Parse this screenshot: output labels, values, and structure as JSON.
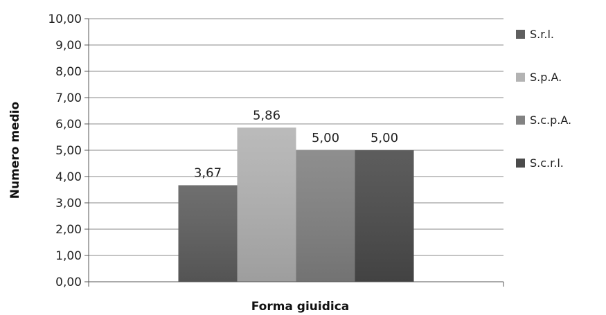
{
  "chart_data": {
    "type": "bar",
    "categories": [
      ""
    ],
    "series": [
      {
        "name": "S.r.l.",
        "values": [
          3.67
        ],
        "label": "3,67",
        "color": "#5f5f5f"
      },
      {
        "name": "S.p.A.",
        "values": [
          5.86
        ],
        "label": "5,86",
        "color": "#b3b3b3"
      },
      {
        "name": "S.c.p.A.",
        "values": [
          5.0
        ],
        "label": "5,00",
        "color": "#828282"
      },
      {
        "name": "S.c.r.l.",
        "values": [
          5.0
        ],
        "label": "5,00",
        "color": "#4b4b4b"
      }
    ],
    "xlabel": "Forma giuidica",
    "ylabel": "Numero medio",
    "ylim": [
      0,
      10
    ],
    "yticks": [
      0,
      1,
      2,
      3,
      4,
      5,
      6,
      7,
      8,
      9,
      10
    ],
    "ytick_labels": [
      "0,00",
      "1,00",
      "2,00",
      "3,00",
      "4,00",
      "5,00",
      "6,00",
      "7,00",
      "8,00",
      "9,00",
      "10,00"
    ],
    "grid": true,
    "legend_position": "right"
  }
}
